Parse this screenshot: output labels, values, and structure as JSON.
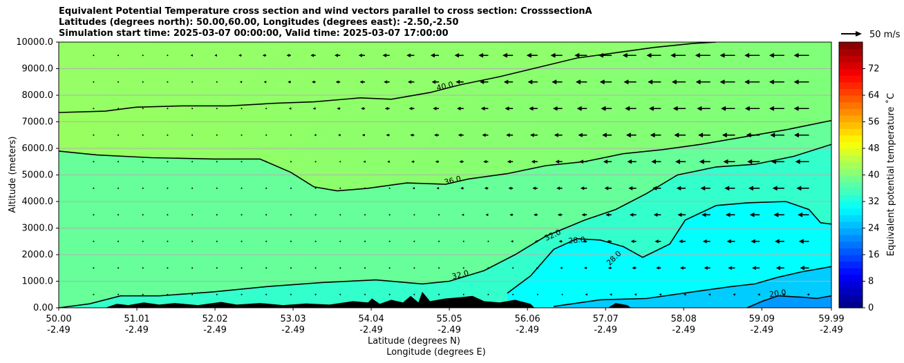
{
  "header": {
    "title_line1": "Equivalent Potential Temperature cross section and wind vectors parallel to cross section: CrosssectionA",
    "title_line2": "Latitudes (degrees north): 50.00,60.00, Longitudes (degrees east): -2.50,-2.50",
    "title_line3": "Simulation start time: 2025-03-07 00:00:00, Valid time: 2025-03-07 17:00:00"
  },
  "chart_data": {
    "type": "heatmap",
    "xlabel": "Latitude (degrees N)",
    "xlabel2": "Longitude (degrees E)",
    "ylabel": "Altitude (meters)",
    "ylim": [
      0,
      10000
    ],
    "xlim": [
      50.0,
      59.99
    ],
    "x_ticks": [
      {
        "lat": "50.00",
        "lon": "-2.49",
        "value": 50.0
      },
      {
        "lat": "51.01",
        "lon": "-2.49",
        "value": 51.01
      },
      {
        "lat": "52.02",
        "lon": "-2.49",
        "value": 52.02
      },
      {
        "lat": "53.03",
        "lon": "-2.49",
        "value": 53.03
      },
      {
        "lat": "54.04",
        "lon": "-2.49",
        "value": 54.04
      },
      {
        "lat": "55.05",
        "lon": "-2.49",
        "value": 55.05
      },
      {
        "lat": "56.06",
        "lon": "-2.49",
        "value": 56.06
      },
      {
        "lat": "57.07",
        "lon": "-2.49",
        "value": 57.07
      },
      {
        "lat": "58.08",
        "lon": "-2.49",
        "value": 58.08
      },
      {
        "lat": "59.09",
        "lon": "-2.49",
        "value": 59.09
      },
      {
        "lat": "59.99",
        "lon": "-2.49",
        "value": 59.99
      }
    ],
    "y_ticks": [
      "0.00",
      "1000.0",
      "2000.0",
      "3000.0",
      "4000.0",
      "5000.0",
      "6000.0",
      "7000.0",
      "8000.0",
      "9000.0",
      "10000.0"
    ],
    "grid": "horizontal",
    "colorbar": {
      "label": "Equivalent potential temperature ˚C",
      "range": [
        0,
        80
      ],
      "ticks": [
        "0",
        "8",
        "16",
        "24",
        "32",
        "40",
        "48",
        "56",
        "64",
        "72"
      ],
      "colormap": "jet"
    },
    "contour_levels": [
      {
        "value": 40.0,
        "label": "40.0",
        "points": [
          [
            50.0,
            7350
          ],
          [
            50.6,
            7400
          ],
          [
            51.0,
            7550
          ],
          [
            51.6,
            7600
          ],
          [
            52.2,
            7600
          ],
          [
            52.8,
            7700
          ],
          [
            53.3,
            7750
          ],
          [
            53.9,
            7900
          ],
          [
            54.3,
            7850
          ],
          [
            54.8,
            8100
          ],
          [
            55.2,
            8400
          ],
          [
            55.7,
            8700
          ],
          [
            56.2,
            9050
          ],
          [
            56.7,
            9400
          ],
          [
            57.2,
            9600
          ],
          [
            57.7,
            9800
          ],
          [
            58.2,
            9950
          ],
          [
            58.5,
            10000
          ]
        ]
      },
      {
        "value": 36.0,
        "label": "36.0",
        "points": [
          [
            50.0,
            5900
          ],
          [
            50.5,
            5750
          ],
          [
            51.2,
            5650
          ],
          [
            52.0,
            5600
          ],
          [
            52.6,
            5600
          ],
          [
            53.0,
            5100
          ],
          [
            53.3,
            4550
          ],
          [
            53.6,
            4400
          ],
          [
            54.0,
            4500
          ],
          [
            54.5,
            4700
          ],
          [
            55.0,
            4650
          ],
          [
            55.3,
            4850
          ],
          [
            55.8,
            5050
          ],
          [
            56.3,
            5350
          ],
          [
            56.8,
            5500
          ],
          [
            57.3,
            5800
          ],
          [
            57.8,
            5950
          ],
          [
            58.3,
            6150
          ],
          [
            58.8,
            6400
          ],
          [
            59.4,
            6700
          ],
          [
            59.99,
            7050
          ]
        ]
      },
      {
        "value": 32.0,
        "label": "32.0",
        "points": [
          [
            50.0,
            0
          ],
          [
            50.4,
            150
          ],
          [
            50.8,
            450
          ],
          [
            51.3,
            450
          ],
          [
            52.0,
            600
          ],
          [
            52.7,
            800
          ],
          [
            53.4,
            950
          ],
          [
            54.1,
            1050
          ],
          [
            54.7,
            900
          ],
          [
            55.05,
            1000
          ],
          [
            55.5,
            1400
          ],
          [
            55.9,
            2000
          ],
          [
            56.3,
            2700
          ],
          [
            56.8,
            3300
          ],
          [
            57.2,
            3700
          ],
          [
            57.6,
            4300
          ],
          [
            58.0,
            5000
          ],
          [
            58.5,
            5300
          ],
          [
            59.0,
            5400
          ],
          [
            59.5,
            5700
          ],
          [
            59.99,
            6150
          ]
        ]
      },
      {
        "value": 28.0,
        "label": "28.0",
        "points": [
          [
            55.8,
            550
          ],
          [
            56.1,
            1200
          ],
          [
            56.4,
            2200
          ],
          [
            56.7,
            2600
          ],
          [
            57.0,
            2550
          ],
          [
            57.3,
            2300
          ],
          [
            57.55,
            1900
          ],
          [
            57.9,
            2400
          ],
          [
            58.1,
            3300
          ],
          [
            58.5,
            3850
          ],
          [
            58.9,
            3950
          ],
          [
            59.4,
            4000
          ],
          [
            59.7,
            3700
          ],
          [
            59.85,
            3200
          ],
          [
            59.99,
            3150
          ]
        ]
      },
      {
        "value": 24.0,
        "label": "",
        "points": [
          [
            56.4,
            50
          ],
          [
            57.0,
            300
          ],
          [
            57.6,
            350
          ],
          [
            58.2,
            600
          ],
          [
            58.7,
            800
          ],
          [
            59.0,
            900
          ],
          [
            59.3,
            1150
          ],
          [
            59.6,
            1350
          ],
          [
            59.99,
            1550
          ]
        ]
      },
      {
        "value": 20.0,
        "label": "20.0",
        "points": [
          [
            58.9,
            0
          ],
          [
            59.1,
            250
          ],
          [
            59.3,
            450
          ],
          [
            59.6,
            400
          ],
          [
            59.8,
            350
          ],
          [
            59.99,
            450
          ]
        ]
      }
    ],
    "terrain": "black filled orography along the surface"
  }
}
